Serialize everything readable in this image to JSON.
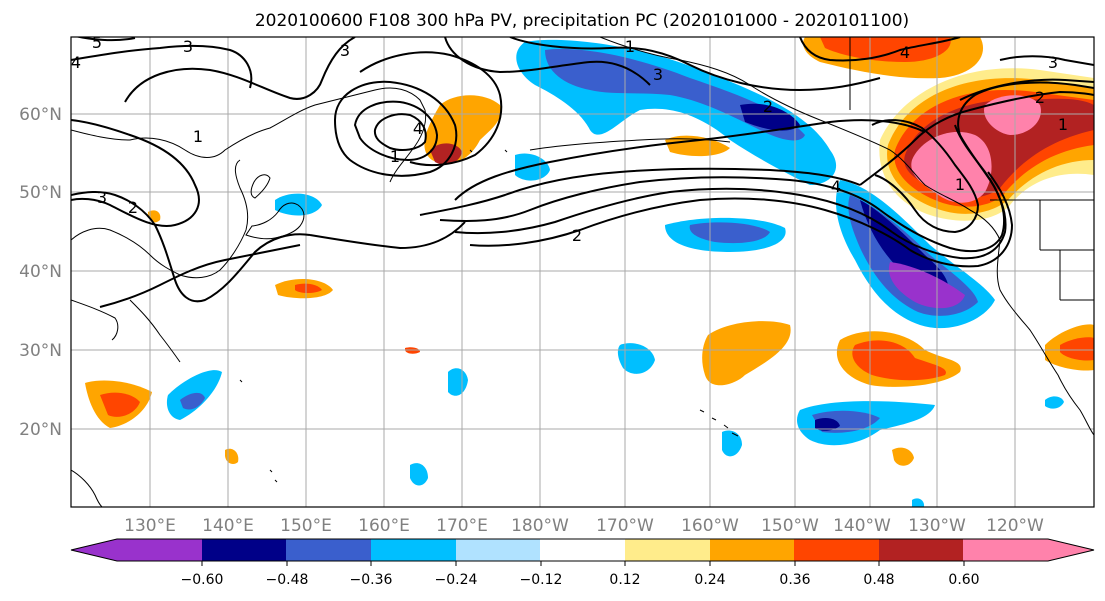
{
  "title": "2020100600 F108 300 hPa PV, precipitation PC (2020101000 - 2020101100)",
  "map": {
    "lat_labels": [
      "60°N",
      "50°N",
      "40°N",
      "30°N",
      "20°N"
    ],
    "lon_labels": [
      "130°E",
      "140°E",
      "150°E",
      "160°E",
      "170°E",
      "180°W",
      "170°W",
      "160°W",
      "150°W",
      "140°W",
      "130°W",
      "120°W"
    ],
    "pv_contour_labels": [
      "5",
      "4",
      "3",
      "3",
      "1",
      "2",
      "3",
      "1",
      "4",
      "2",
      "1",
      "3",
      "2",
      "4",
      "4",
      "3",
      "1",
      "1",
      "2"
    ]
  },
  "colorbar": {
    "tick_labels": [
      "−0.60",
      "−0.48",
      "−0.36",
      "−0.24",
      "−0.12",
      "0.12",
      "0.24",
      "0.36",
      "0.48",
      "0.60"
    ],
    "colors": [
      "#9932cc",
      "#000088",
      "#3a5fcd",
      "#00bfff",
      "#b0e2ff",
      "#ffffff",
      "#ffec8b",
      "#ffa500",
      "#ff4500",
      "#b22222",
      "#ff82ab"
    ]
  }
}
